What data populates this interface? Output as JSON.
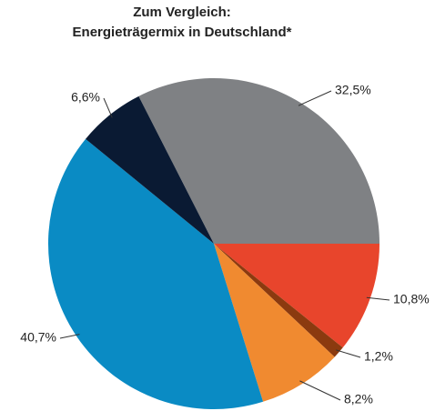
{
  "chart_data": {
    "type": "pie",
    "title": [
      "Zum Vergleich:",
      "Energieträgermix in Deutschland*"
    ],
    "values": [
      32.5,
      10.8,
      1.2,
      8.2,
      40.7,
      6.6
    ],
    "value_labels": [
      "32,5%",
      "10,8%",
      "1,2%",
      "8,2%",
      "40,7%",
      "6,6%"
    ],
    "colors": [
      "#7f8184",
      "#e8452c",
      "#8b3a0f",
      "#f08a30",
      "#0a8bc4",
      "#0a1a33"
    ]
  }
}
